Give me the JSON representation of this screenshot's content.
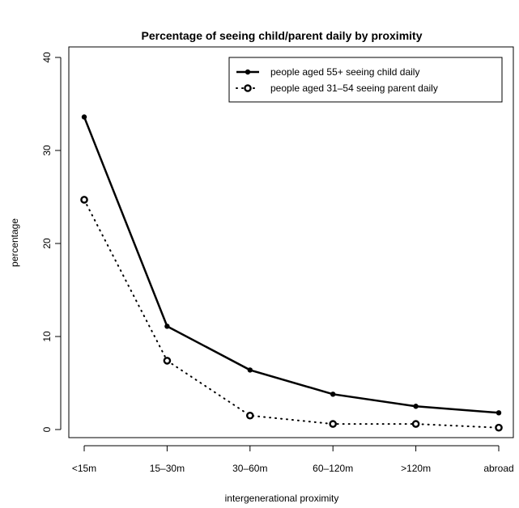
{
  "chart_data": {
    "type": "line",
    "title": "Percentage of seeing child/parent daily by proximity",
    "xlabel": "intergenerational proximity",
    "ylabel": "percentage",
    "categories": [
      "<15m",
      "15–30m",
      "30–60m",
      "60–120m",
      ">120m",
      "abroad"
    ],
    "ylim": [
      0,
      40
    ],
    "yticks": [
      0,
      10,
      20,
      30,
      40
    ],
    "grid": false,
    "legend_position": "top-right",
    "series": [
      {
        "name": "people aged 55+ seeing child daily",
        "values": [
          33.6,
          11.1,
          6.4,
          3.8,
          2.5,
          1.8
        ],
        "line_style": "solid",
        "marker": "filled-circle",
        "color": "#000000"
      },
      {
        "name": "people aged 31–54 seeing parent daily",
        "values": [
          24.7,
          7.4,
          1.5,
          0.6,
          0.6,
          0.2
        ],
        "line_style": "dotted",
        "marker": "open-circle",
        "color": "#000000"
      }
    ]
  }
}
